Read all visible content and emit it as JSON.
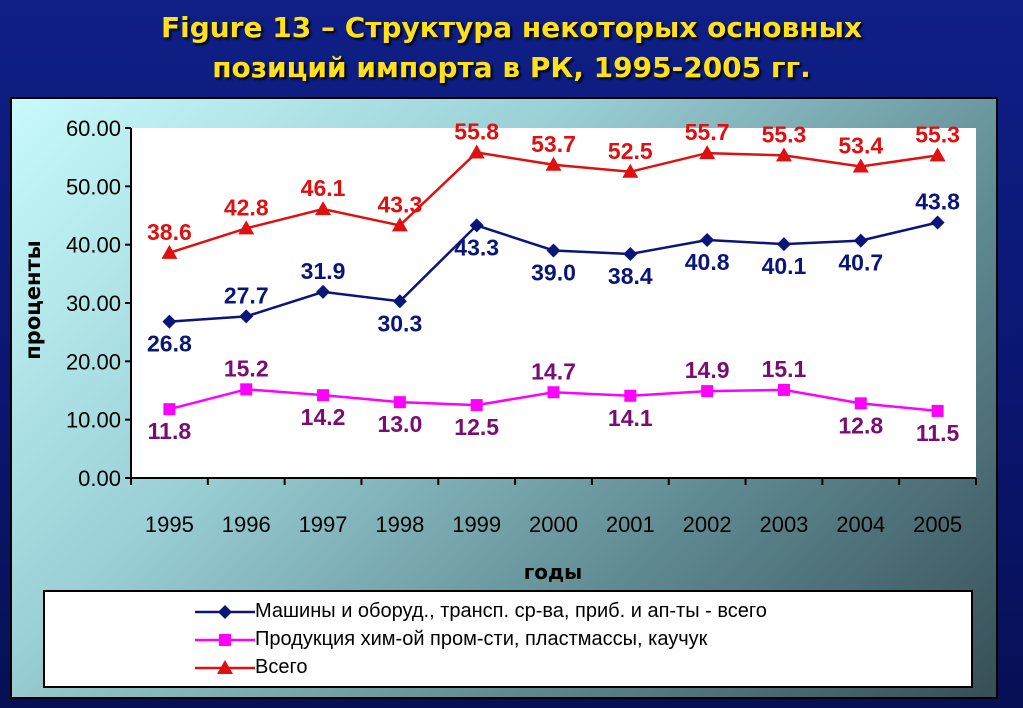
{
  "title": {
    "line1": "Figure 13 – Структура некоторых основных",
    "line2": "позиций импорта в РК, 1995-2005 гг."
  },
  "colors": {
    "background": "#0c1a7a",
    "title": "#ffe11a",
    "series_machinery": "#0a1578",
    "series_chem_line": "#ff00ff",
    "series_chem_label": "#7a0d74",
    "series_total": "#e01010"
  },
  "chart_data": {
    "type": "line",
    "xlabel": "годы",
    "ylabel": "проценты",
    "ylim": [
      0,
      60
    ],
    "yticks": [
      "0.00",
      "10.00",
      "20.00",
      "30.00",
      "40.00",
      "50.00",
      "60.00"
    ],
    "categories": [
      "1995",
      "1996",
      "1997",
      "1998",
      "1999",
      "2000",
      "2001",
      "2002",
      "2003",
      "2004",
      "2005"
    ],
    "grid": false,
    "legend_position": "bottom",
    "series": [
      {
        "name": "Машины и оборуд., трансп. ср-ва, приб. и ап-ты - всего",
        "marker": "diamond",
        "values": [
          26.8,
          27.7,
          31.9,
          30.3,
          43.3,
          39.0,
          38.4,
          40.8,
          40.1,
          40.7,
          43.8
        ],
        "labels": [
          "26.8",
          "27.7",
          "31.9",
          "30.3",
          "43.3",
          "39.0",
          "38.4",
          "40.8",
          "40.1",
          "40.7",
          "43.8"
        ]
      },
      {
        "name": "Продукция хим-ой пром-сти, пластмассы, каучук",
        "marker": "square",
        "values": [
          11.8,
          15.2,
          14.2,
          13.0,
          12.5,
          14.7,
          14.1,
          14.9,
          15.1,
          12.8,
          11.5
        ],
        "labels": [
          "11.8",
          "15.2",
          "14.2",
          "13.0",
          "12.5",
          "14.7",
          "14.1",
          "14.9",
          "15.1",
          "12.8",
          "11.5"
        ]
      },
      {
        "name": "Всего",
        "marker": "triangle",
        "values": [
          38.6,
          42.8,
          46.1,
          43.3,
          55.8,
          53.7,
          52.5,
          55.7,
          55.3,
          53.4,
          55.3
        ],
        "labels": [
          "38.6",
          "42.8",
          "46.1",
          "43.3",
          "55.8",
          "53.7",
          "52.5",
          "55.7",
          "55.3",
          "53.4",
          "55.3"
        ]
      }
    ]
  }
}
